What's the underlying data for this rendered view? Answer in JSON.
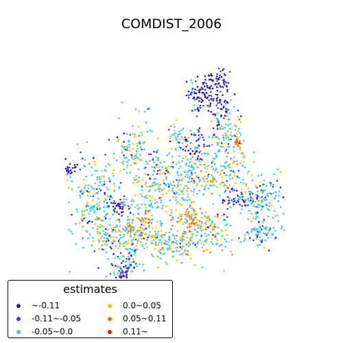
{
  "title": "COMDIST_2006",
  "legend": {
    "title": "estimates",
    "items": [
      {
        "label": "~-0.11",
        "color": "#2d0fc9"
      },
      {
        "label": "-0.11~-0.05",
        "color": "#3b37e8"
      },
      {
        "label": "-0.05~0.0",
        "color": "#33ccee"
      },
      {
        "label": "0.0~0.05",
        "color": "#f5c400"
      },
      {
        "label": "0.05~0.11",
        "color": "#f56a00"
      },
      {
        "label": "0.11~",
        "color": "#e8150c"
      }
    ]
  }
}
